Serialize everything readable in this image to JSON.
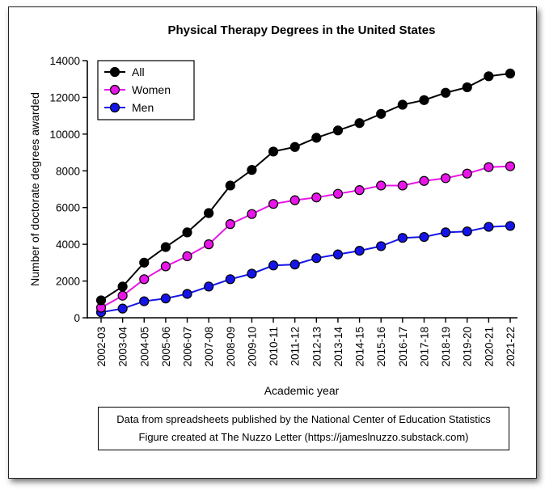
{
  "chart_data": {
    "type": "line",
    "title": "Physical Therapy Degrees in the United States",
    "xlabel": "Academic year",
    "ylabel": "Number of doctorate degrees awarded",
    "ylim": [
      0,
      14000
    ],
    "yticks": [
      0,
      2000,
      4000,
      6000,
      8000,
      10000,
      12000,
      14000
    ],
    "grid": false,
    "legend": "top-left",
    "categories": [
      "2002-03",
      "2003-04",
      "2004-05",
      "2005-06",
      "2006-07",
      "2007-08",
      "2008-09",
      "2009-10",
      "2010-11",
      "2011-12",
      "2012-13",
      "2013-14",
      "2014-15",
      "2015-16",
      "2016-17",
      "2017-18",
      "2018-19",
      "2019-20",
      "2020-21",
      "2021-22"
    ],
    "series": [
      {
        "name": "All",
        "color": "#000000",
        "values": [
          950,
          1700,
          3000,
          3850,
          4650,
          5700,
          7200,
          8050,
          9050,
          9300,
          9800,
          10200,
          10600,
          11100,
          11600,
          11850,
          12250,
          12550,
          13150,
          13300
        ]
      },
      {
        "name": "Women",
        "color": "#e815e8",
        "values": [
          550,
          1200,
          2100,
          2800,
          3350,
          4000,
          5100,
          5650,
          6200,
          6400,
          6550,
          6750,
          6950,
          7200,
          7200,
          7450,
          7600,
          7850,
          8200,
          8250
        ]
      },
      {
        "name": "Men",
        "color": "#1414e8",
        "values": [
          300,
          500,
          900,
          1050,
          1300,
          1700,
          2100,
          2400,
          2850,
          2900,
          3250,
          3450,
          3650,
          3900,
          4350,
          4400,
          4650,
          4700,
          4950,
          5000
        ]
      }
    ]
  },
  "notes": {
    "line1": "Data from spreadsheets published by the National Center of Education Statistics",
    "line2": "Figure created at The Nuzzo Letter (https://jameslnuzzo.substack.com)"
  }
}
